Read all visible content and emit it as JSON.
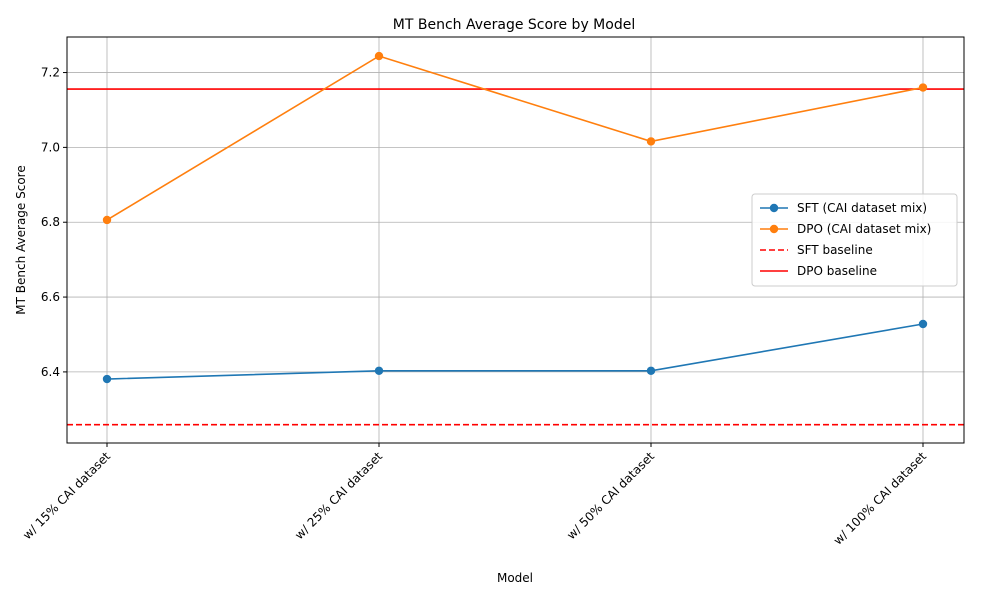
{
  "chart_data": {
    "type": "line",
    "title": "MT Bench Average Score by Model",
    "xlabel": "Model",
    "ylabel": "MT Bench Average Score",
    "categories": [
      "w/ 15% CAI dataset",
      "w/ 25% CAI dataset",
      "w/ 50% CAI dataset",
      "w/ 100% CAI dataset"
    ],
    "series": [
      {
        "name": "SFT (CAI dataset mix)",
        "values": [
          6.381,
          6.403,
          6.403,
          6.528
        ],
        "color": "#1f77b4",
        "marker": "circle",
        "line": "solid"
      },
      {
        "name": "DPO (CAI dataset mix)",
        "values": [
          6.806,
          7.244,
          7.016,
          7.16
        ],
        "color": "#ff7f0e",
        "marker": "circle",
        "line": "solid"
      }
    ],
    "baselines": [
      {
        "name": "SFT baseline",
        "value": 6.259,
        "color": "#ff0000",
        "line": "dashed"
      },
      {
        "name": "DPO baseline",
        "value": 7.156,
        "color": "#ff0000",
        "line": "solid"
      }
    ],
    "ylim": [
      6.21,
      7.295
    ],
    "yticks": [
      "6.4",
      "6.6",
      "6.8",
      "7.0",
      "7.2"
    ],
    "ytick_values": [
      6.4,
      6.6,
      6.8,
      7.0,
      7.2
    ],
    "grid": true,
    "legend_position": "center-right"
  }
}
